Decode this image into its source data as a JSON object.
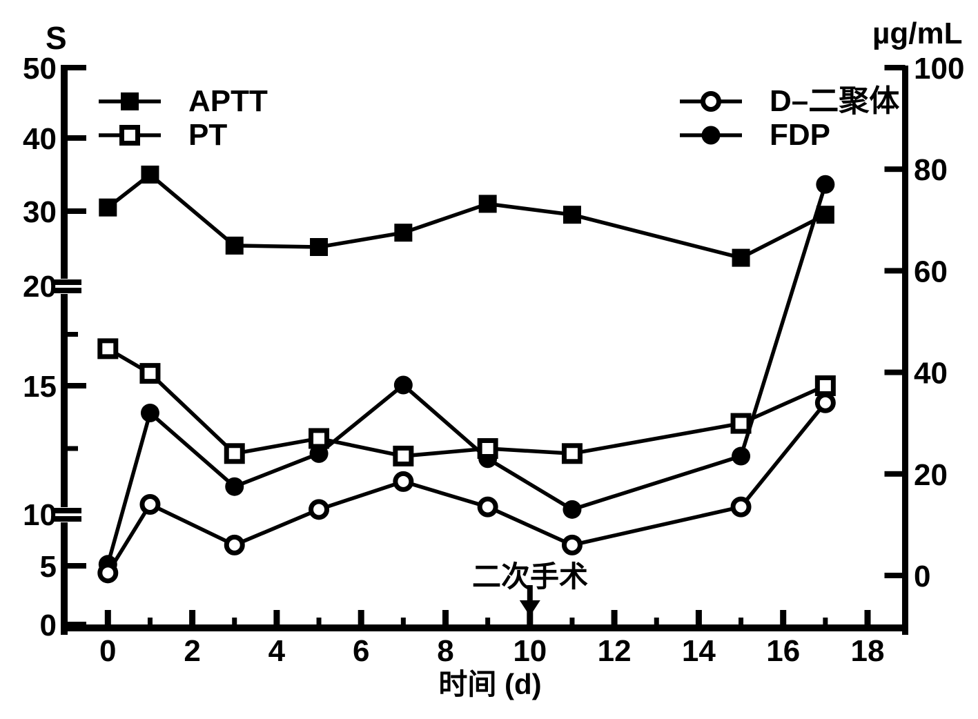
{
  "chart_data": {
    "type": "line",
    "title": "",
    "x_label": "时间 (d)",
    "x_days": [
      0,
      1,
      3,
      5,
      7,
      9,
      11,
      15,
      17
    ],
    "x_axis": {
      "ticks_major": [
        0,
        2,
        4,
        6,
        8,
        10,
        12,
        14,
        16,
        18
      ],
      "ticks_minor": [
        1,
        3,
        5,
        7,
        9,
        11,
        13,
        15,
        17
      ],
      "range": [
        0,
        19
      ]
    },
    "left_axis": {
      "unit": "S",
      "ticks": [
        0,
        5,
        10,
        15,
        20,
        30,
        40,
        50
      ],
      "break_at": [
        10,
        20
      ],
      "minor_ticks": [
        12.5,
        17.5
      ],
      "range": [
        0,
        50
      ]
    },
    "right_axis": {
      "unit": "µg/mL",
      "ticks": [
        0,
        20,
        40,
        60,
        80,
        100
      ],
      "range": [
        0,
        100
      ]
    },
    "series": [
      {
        "name": "APTT",
        "axis": "left",
        "marker": "filled-square",
        "values": [
          30.5,
          35,
          25.2,
          25,
          27,
          31,
          29.5,
          23.5,
          29.5
        ]
      },
      {
        "name": "PT",
        "axis": "left",
        "marker": "open-square",
        "values": [
          16.8,
          15.6,
          12.3,
          12.9,
          12.2,
          12.5,
          12.3,
          13.5,
          15
        ]
      },
      {
        "name": "D–二聚体",
        "axis": "right",
        "marker": "open-circle",
        "values": [
          0.5,
          14,
          6,
          13,
          18.5,
          13.5,
          6,
          13.5,
          34
        ]
      },
      {
        "name": "FDP",
        "axis": "right",
        "marker": "filled-circle",
        "values": [
          2.2,
          32,
          17.5,
          24,
          37.5,
          23,
          13,
          23.5,
          77
        ]
      }
    ],
    "annotation": {
      "text": "二次手术",
      "x_day": 10,
      "arrow": "↓"
    },
    "colors": {
      "ink": "#000000",
      "background": "#ffffff"
    }
  },
  "legend": {
    "left": [
      {
        "label": "APTT",
        "marker": "filled-square"
      },
      {
        "label": "PT",
        "marker": "open-square"
      }
    ],
    "right": [
      {
        "label": "D–二聚体",
        "marker": "open-circle"
      },
      {
        "label": "FDP",
        "marker": "filled-circle"
      }
    ]
  }
}
